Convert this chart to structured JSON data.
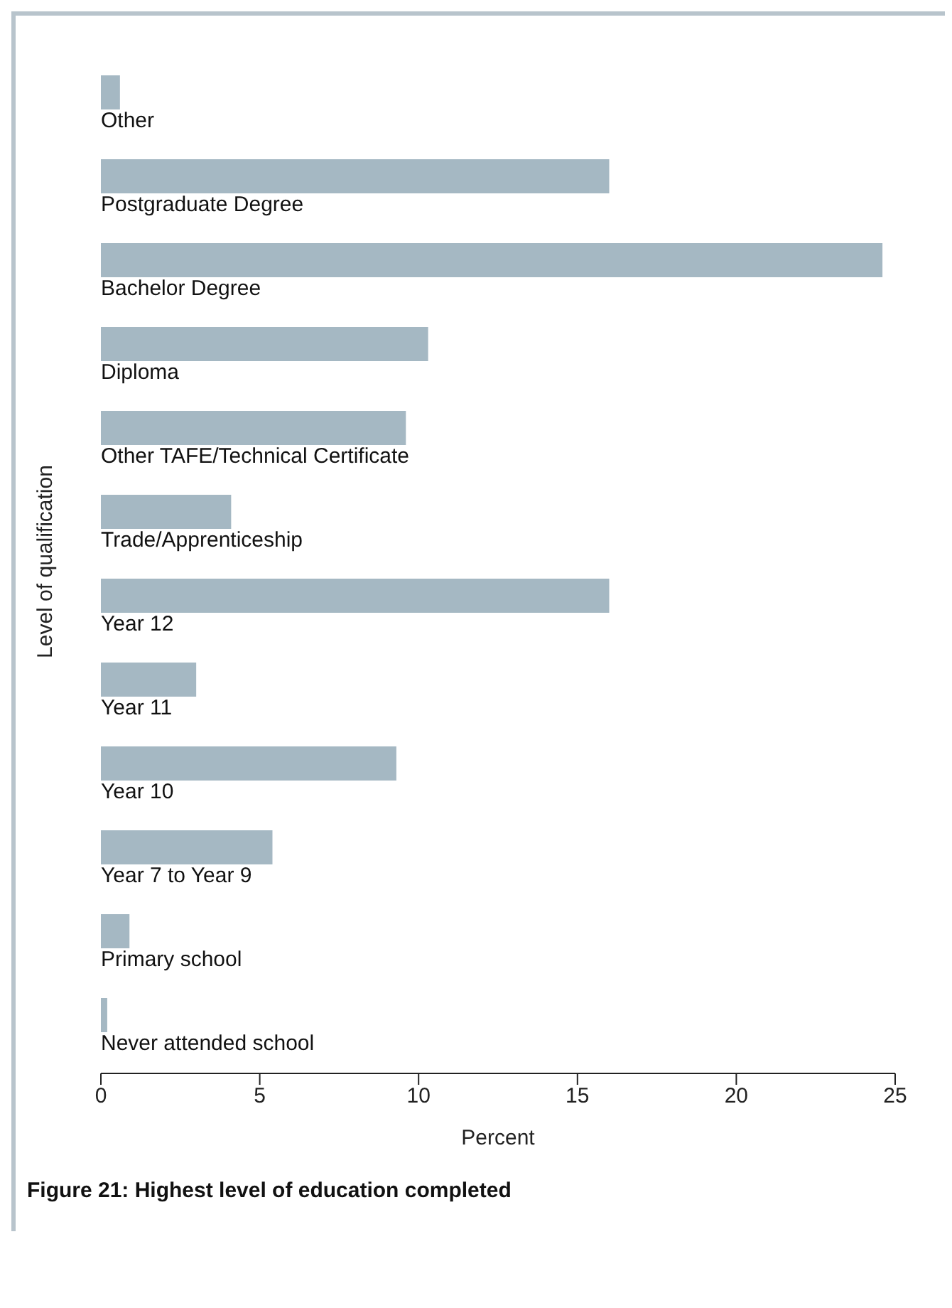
{
  "chart_data": {
    "type": "bar",
    "orientation": "horizontal",
    "title": "Figure 21: Highest level of education completed",
    "xlabel": "Percent",
    "ylabel": "Level of qualification",
    "categories": [
      "Other",
      "Postgraduate Degree",
      "Bachelor Degree",
      "Diploma",
      "Other TAFE/Technical Certificate",
      "Trade/Apprenticeship",
      "Year 12",
      "Year 11",
      "Year 10",
      "Year 7 to Year 9",
      "Primary school",
      "Never attended school"
    ],
    "values": [
      0.6,
      16.0,
      24.6,
      10.3,
      9.6,
      4.1,
      16.0,
      3.0,
      9.3,
      5.4,
      0.9,
      0.2
    ],
    "color": "#a5b8c3",
    "xlim": [
      0,
      25
    ],
    "xticks": [
      0,
      5,
      10,
      15,
      20,
      25
    ],
    "grid": false
  }
}
